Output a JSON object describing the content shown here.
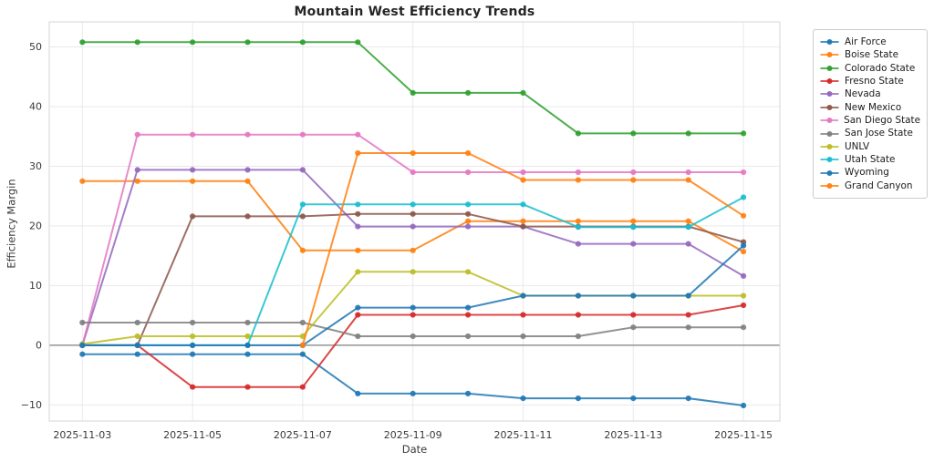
{
  "chart_data": {
    "type": "line",
    "title": "Mountain West Efficiency Trends",
    "xlabel": "Date",
    "ylabel": "Efficiency Margin",
    "x": [
      "2025-11-03",
      "2025-11-04",
      "2025-11-05",
      "2025-11-06",
      "2025-11-07",
      "2025-11-08",
      "2025-11-09",
      "2025-11-10",
      "2025-11-11",
      "2025-11-12",
      "2025-11-13",
      "2025-11-14",
      "2025-11-15"
    ],
    "x_tick_labels": [
      "2025-11-03",
      "2025-11-05",
      "2025-11-07",
      "2025-11-09",
      "2025-11-11",
      "2025-11-13",
      "2025-11-15"
    ],
    "x_tick_indices": [
      0,
      2,
      4,
      6,
      8,
      10,
      12
    ],
    "y_tick_values": [
      -10,
      0,
      10,
      20,
      30,
      40,
      50
    ],
    "y_tick_labels": [
      "−10",
      "0",
      "10",
      "20",
      "30",
      "40",
      "50"
    ],
    "ylim": [
      -12.7,
      54.2
    ],
    "grid": true,
    "grid_color": "#e9e9ee",
    "zero_line_color": "#808080",
    "spine_color": "#d5d5d5",
    "legend_position": "outside-right",
    "series": [
      {
        "name": "Air Force",
        "color": "#1f77b4",
        "values": [
          -1.5,
          -1.5,
          -1.5,
          -1.5,
          -1.5,
          -8.1,
          -8.1,
          -8.1,
          -8.9,
          -8.9,
          -8.9,
          -8.9,
          -10.1
        ]
      },
      {
        "name": "Boise State",
        "color": "#ff7f0e",
        "values": [
          27.5,
          27.5,
          27.5,
          27.5,
          15.9,
          15.9,
          15.9,
          20.8,
          20.8,
          20.8,
          20.8,
          20.8,
          15.7
        ]
      },
      {
        "name": "Colorado State",
        "color": "#2ca02c",
        "values": [
          50.8,
          50.8,
          50.8,
          50.8,
          50.8,
          50.8,
          42.3,
          42.3,
          42.3,
          35.5,
          35.5,
          35.5,
          35.5
        ]
      },
      {
        "name": "Fresno State",
        "color": "#d62728",
        "values": [
          0,
          0,
          -7.0,
          -7.0,
          -7.0,
          5.1,
          5.1,
          5.1,
          5.1,
          5.1,
          5.1,
          5.1,
          6.7
        ]
      },
      {
        "name": "Nevada",
        "color": "#9467bd",
        "values": [
          0,
          29.4,
          29.4,
          29.4,
          29.4,
          19.9,
          19.9,
          19.9,
          19.9,
          17.0,
          17.0,
          17.0,
          11.6
        ]
      },
      {
        "name": "New Mexico",
        "color": "#8c564b",
        "values": [
          0,
          0,
          21.6,
          21.6,
          21.6,
          22.0,
          22.0,
          22.0,
          19.9,
          19.9,
          19.9,
          19.9,
          17.3
        ]
      },
      {
        "name": "San Diego State",
        "color": "#e377c2",
        "values": [
          0,
          35.3,
          35.3,
          35.3,
          35.3,
          35.3,
          29.0,
          29.0,
          29.0,
          29.0,
          29.0,
          29.0,
          29.0
        ]
      },
      {
        "name": "San Jose State",
        "color": "#7f7f7f",
        "values": [
          3.8,
          3.8,
          3.8,
          3.8,
          3.8,
          1.5,
          1.5,
          1.5,
          1.5,
          1.5,
          3.0,
          3.0,
          3.0
        ]
      },
      {
        "name": "UNLV",
        "color": "#bcbd22",
        "values": [
          0.2,
          1.5,
          1.5,
          1.5,
          1.5,
          12.3,
          12.3,
          12.3,
          8.3,
          8.3,
          8.3,
          8.3,
          8.3
        ]
      },
      {
        "name": "Utah State",
        "color": "#17becf",
        "values": [
          0,
          0,
          0,
          0,
          23.6,
          23.6,
          23.6,
          23.6,
          23.6,
          19.8,
          19.8,
          19.8,
          24.8
        ]
      },
      {
        "name": "Wyoming",
        "color": "#1f77b4",
        "values": [
          0,
          0,
          0,
          0,
          0,
          6.3,
          6.3,
          6.3,
          8.3,
          8.3,
          8.3,
          8.3,
          16.7
        ]
      },
      {
        "name": "Grand Canyon",
        "color": "#ff7f0e",
        "values": [
          null,
          null,
          null,
          null,
          0,
          32.2,
          32.2,
          32.2,
          27.7,
          27.7,
          27.7,
          27.7,
          21.7
        ]
      }
    ]
  }
}
